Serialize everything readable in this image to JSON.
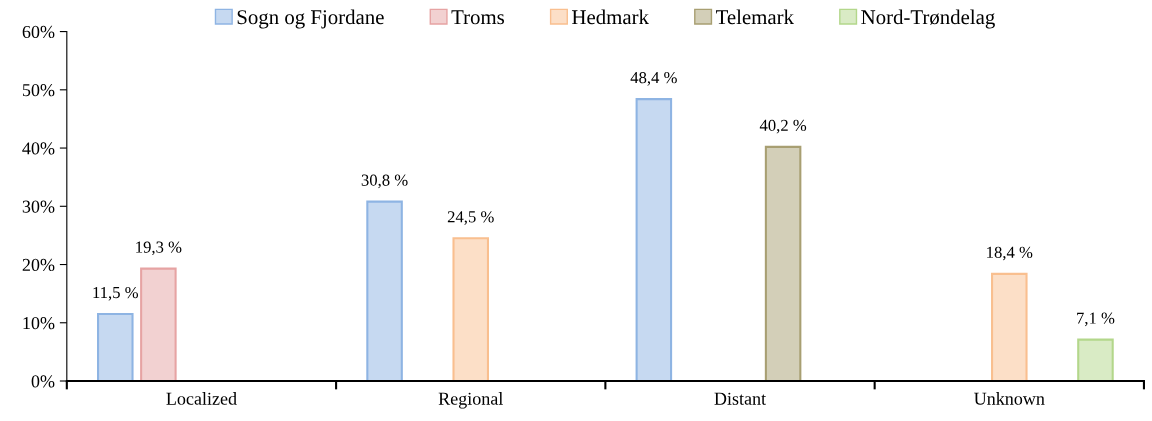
{
  "chart_data": {
    "type": "bar",
    "categories": [
      "Localized",
      "Regional",
      "Distant",
      "Unknown"
    ],
    "series": [
      {
        "name": "Sogn og Fjordane",
        "color": "#8eb4e3",
        "values": [
          11.5,
          30.8,
          48.4,
          null
        ],
        "value_labels": [
          "11,5 %",
          "30,8 %",
          "48,4 %",
          null
        ]
      },
      {
        "name": "Troms",
        "color": "#e6a3a3",
        "values": [
          19.3,
          null,
          null,
          null
        ],
        "value_labels": [
          "19,3 %",
          null,
          null,
          null
        ]
      },
      {
        "name": "Hedmark",
        "color": "#f9bf8f",
        "values": [
          null,
          24.5,
          null,
          18.4
        ],
        "value_labels": [
          null,
          "24,5 %",
          null,
          "18,4 %"
        ]
      },
      {
        "name": "Telemark",
        "color": "#a89f72",
        "values": [
          null,
          null,
          40.2,
          null
        ],
        "value_labels": [
          null,
          null,
          "40,2 %",
          null
        ]
      },
      {
        "name": "Nord-Trøndelag",
        "color": "#b3d78b",
        "values": [
          null,
          null,
          null,
          7.1
        ],
        "value_labels": [
          null,
          null,
          null,
          "7,1 %"
        ]
      }
    ],
    "ylim": [
      0,
      60
    ],
    "yticks": [
      {
        "value": 0,
        "label": "0%"
      },
      {
        "value": 10,
        "label": "10%"
      },
      {
        "value": 20,
        "label": "20%"
      },
      {
        "value": 30,
        "label": "30%"
      },
      {
        "value": 40,
        "label": "40%"
      },
      {
        "value": 50,
        "label": "50%"
      },
      {
        "value": 60,
        "label": "60%"
      }
    ],
    "grid": false,
    "legend": "top"
  }
}
